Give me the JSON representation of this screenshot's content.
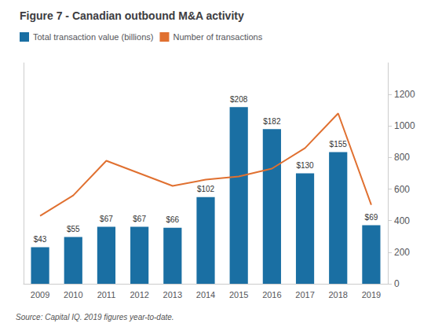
{
  "chart_data": {
    "type": "bar",
    "title": "Figure 7 - Canadian outbound M&A activity",
    "categories": [
      "2009",
      "2010",
      "2011",
      "2012",
      "2013",
      "2014",
      "2015",
      "2016",
      "2017",
      "2018",
      "2019"
    ],
    "series": [
      {
        "name": "Total transaction value (billions)",
        "type": "bar",
        "color": "#1a6fa3",
        "values": [
          43,
          55,
          67,
          67,
          66,
          102,
          208,
          182,
          130,
          155,
          69
        ],
        "value_labels": [
          "$43",
          "$55",
          "$67",
          "$67",
          "$66",
          "$102",
          "$208",
          "$182",
          "$130",
          "$155",
          "$69"
        ],
        "data_labels": true
      },
      {
        "name": "Number of transactions",
        "type": "line",
        "color": "#e07030",
        "axis": "y2",
        "values": [
          430,
          560,
          780,
          700,
          620,
          660,
          680,
          730,
          860,
          1080,
          500
        ]
      }
    ],
    "ylim": [
      0,
      260
    ],
    "yticks": [],
    "y2lim": [
      0,
      1400
    ],
    "y2ticks": [
      0,
      200,
      400,
      600,
      800,
      1000,
      1200
    ],
    "grid": false,
    "legend": "upper left",
    "annotations": [
      "Source: Capital IQ. 2019 figures year-to-date."
    ]
  }
}
